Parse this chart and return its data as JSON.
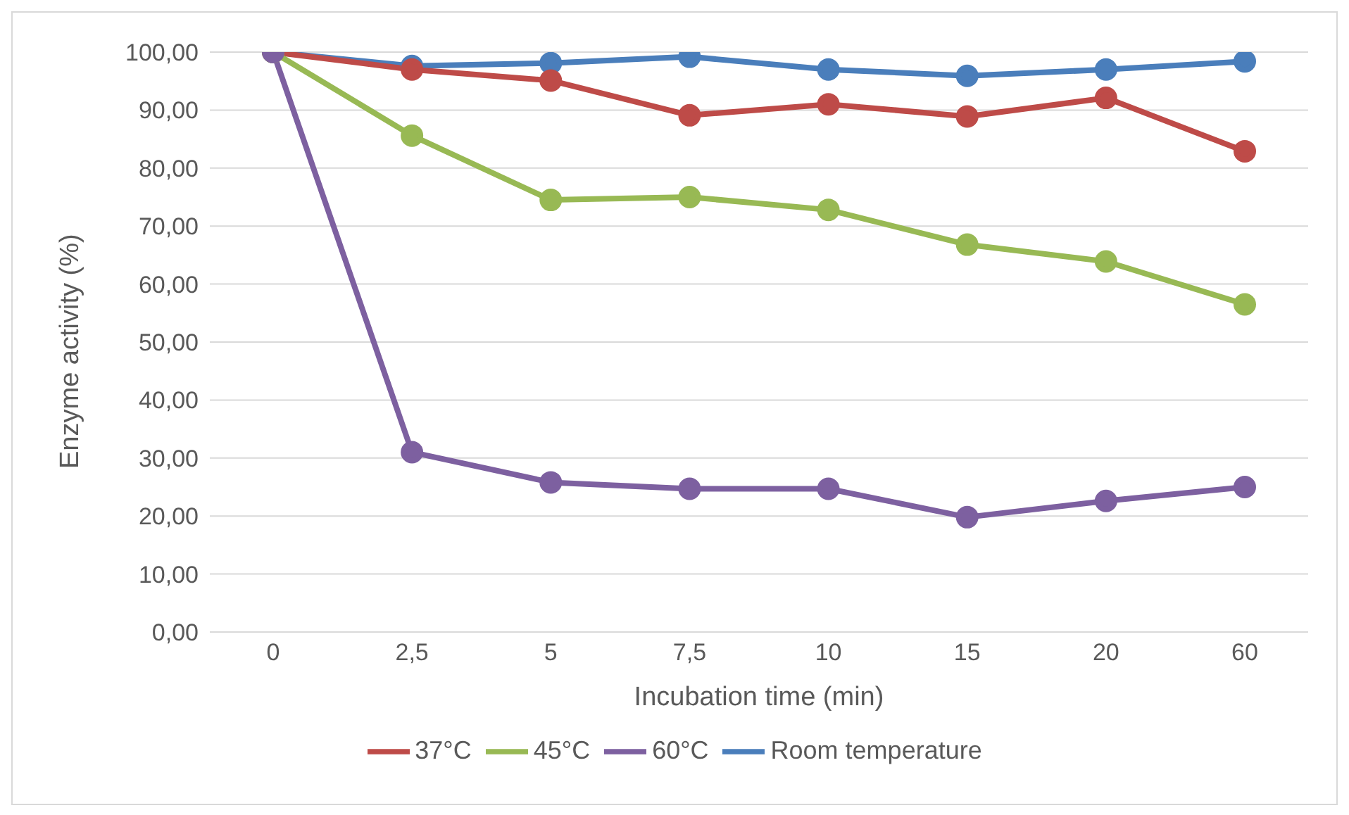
{
  "chart_data": {
    "type": "line",
    "xlabel": "Incubation time (min)",
    "ylabel": "Enzyme activity (%)",
    "categories": [
      "0",
      "2,5",
      "5",
      "7,5",
      "10",
      "15",
      "20",
      "60"
    ],
    "series": [
      {
        "name": "Room temperature",
        "color": "#4a7ebb",
        "values": [
          100,
          97.6,
          98.1,
          99.2,
          97.0,
          95.9,
          97.0,
          98.4
        ]
      },
      {
        "name": "37°C",
        "color": "#be4b48",
        "values": [
          100,
          97,
          95.1,
          89.1,
          91.0,
          88.9,
          92.1,
          82.9
        ]
      },
      {
        "name": "45°C",
        "color": "#98b954",
        "values": [
          100,
          85.6,
          74.5,
          75.0,
          72.8,
          66.8,
          63.9,
          56.5
        ]
      },
      {
        "name": "60°C",
        "color": "#7d60a0",
        "values": [
          100,
          31.0,
          25.8,
          24.7,
          24.7,
          19.8,
          22.6,
          25.0
        ]
      }
    ],
    "ylim": [
      0,
      100
    ],
    "yticks": [
      {
        "value": 0,
        "label": "0,00"
      },
      {
        "value": 10,
        "label": "10,00"
      },
      {
        "value": 20,
        "label": "20,00"
      },
      {
        "value": 30,
        "label": "30,00"
      },
      {
        "value": 40,
        "label": "40,00"
      },
      {
        "value": 50,
        "label": "50,00"
      },
      {
        "value": 60,
        "label": "60,00"
      },
      {
        "value": 70,
        "label": "70,00"
      },
      {
        "value": 80,
        "label": "80,00"
      },
      {
        "value": 90,
        "label": "90,00"
      },
      {
        "value": 100,
        "label": "100,00"
      }
    ],
    "grid": "y",
    "legend": "bottom",
    "marker": "circle",
    "line_style": "solid"
  }
}
